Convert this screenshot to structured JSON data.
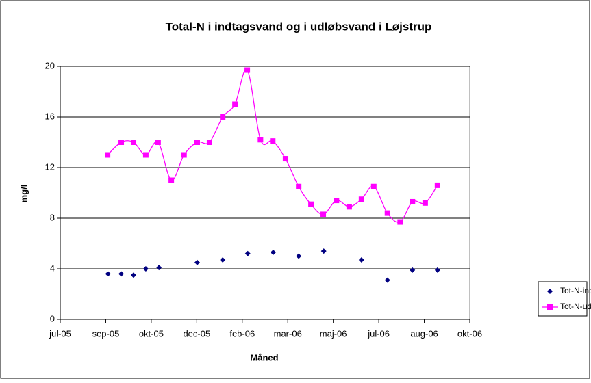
{
  "chart_data": {
    "type": "line",
    "title": "Total-N i indtagsvand og i udløbsvand i Løjstrup",
    "x_label": "Måned",
    "y_label": "mg/l",
    "xlim": [
      0,
      9
    ],
    "xticks": [
      {
        "value": 0,
        "label": "jul-05"
      },
      {
        "value": 1,
        "label": "sep-05"
      },
      {
        "value": 2,
        "label": "okt-05"
      },
      {
        "value": 3,
        "label": "dec-05"
      },
      {
        "value": 4,
        "label": "feb-06"
      },
      {
        "value": 5,
        "label": "mar-06"
      },
      {
        "value": 6,
        "label": "maj-06"
      },
      {
        "value": 7,
        "label": "jul-06"
      },
      {
        "value": 8,
        "label": "aug-06"
      },
      {
        "value": 9,
        "label": "okt-06"
      }
    ],
    "ylim": [
      0,
      20
    ],
    "yticks": [
      0,
      4,
      8,
      12,
      16,
      20
    ],
    "grid": true,
    "legend": "right",
    "series": [
      {
        "name": "Tot-N-ind",
        "color": "#000080",
        "style": "markers",
        "x": [
          1.05,
          1.34,
          1.61,
          1.88,
          2.17,
          3.01,
          3.57,
          4.12,
          4.68,
          5.24,
          5.79,
          6.62,
          7.19,
          7.74,
          8.29
        ],
        "values": [
          3.6,
          3.6,
          3.5,
          4.0,
          4.1,
          4.5,
          4.7,
          5.2,
          5.3,
          5.0,
          5.4,
          4.7,
          3.1,
          3.9,
          3.9
        ]
      },
      {
        "name": "Tot-N-ud",
        "color": "#ff00ff",
        "style": "line",
        "x": [
          1.04,
          1.34,
          1.61,
          1.88,
          2.15,
          2.44,
          2.72,
          3.01,
          3.28,
          3.57,
          3.84,
          4.11,
          4.4,
          4.67,
          4.95,
          5.24,
          5.51,
          5.78,
          6.07,
          6.35,
          6.62,
          6.89,
          7.19,
          7.47,
          7.74,
          8.02,
          8.29
        ],
        "values": [
          13.0,
          14.0,
          14.0,
          13.0,
          14.0,
          11.0,
          13.0,
          14.0,
          14.0,
          16.0,
          17.0,
          19.7,
          14.2,
          14.1,
          12.7,
          10.5,
          9.1,
          8.3,
          9.4,
          8.9,
          9.5,
          10.5,
          8.4,
          7.7,
          9.3,
          9.2,
          10.6
        ]
      }
    ]
  }
}
